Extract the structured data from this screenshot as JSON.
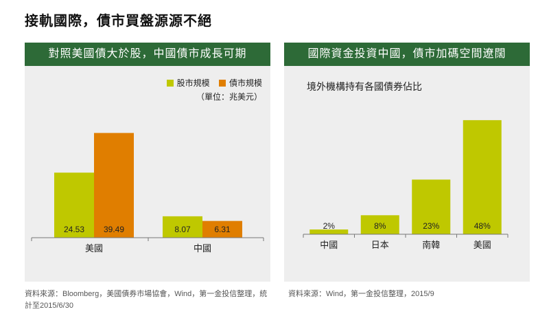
{
  "page": {
    "title": "接軌國際，債市買盤源源不絕"
  },
  "colors": {
    "header_bg": "#2d6a37",
    "panel_bg": "#eeeeee",
    "stock": "#bfc800",
    "bond": "#e07e00"
  },
  "left_panel": {
    "header": "對照美國債大於股，中國債市成長可期",
    "legend": [
      "股市規模",
      "債市規模"
    ],
    "unit": "（單位：兆美元）",
    "source": "資料來源：Bloomberg，美國債券市場協會，Wind，第一金投信整理，統計至2015/6/30"
  },
  "right_panel": {
    "header": "國際資金投資中國，債市加碼空間遼闊",
    "subtitle": "境外機構持有各國債券佔比",
    "source": "資料來源：Wind，第一金投信整理，2015/9"
  },
  "chart_data": [
    {
      "type": "bar",
      "categories": [
        "美國",
        "中國"
      ],
      "series": [
        {
          "name": "股市規模",
          "values": [
            24.53,
            8.07
          ],
          "labels": [
            "24.53",
            "8.07"
          ]
        },
        {
          "name": "債市規模",
          "values": [
            39.49,
            6.31
          ],
          "labels": [
            "39.49",
            "6.31"
          ]
        }
      ],
      "ylim": [
        0,
        43
      ],
      "legend": "top-right",
      "grid": false
    },
    {
      "type": "bar",
      "title": "境外機構持有各國債券佔比",
      "categories": [
        "中國",
        "日本",
        "南韓",
        "美國"
      ],
      "series": [
        {
          "values": [
            2,
            8,
            23,
            48
          ],
          "labels": [
            "2%",
            "8%",
            "23%",
            "48%"
          ]
        }
      ],
      "ylim": [
        0,
        50
      ],
      "grid": false
    }
  ]
}
